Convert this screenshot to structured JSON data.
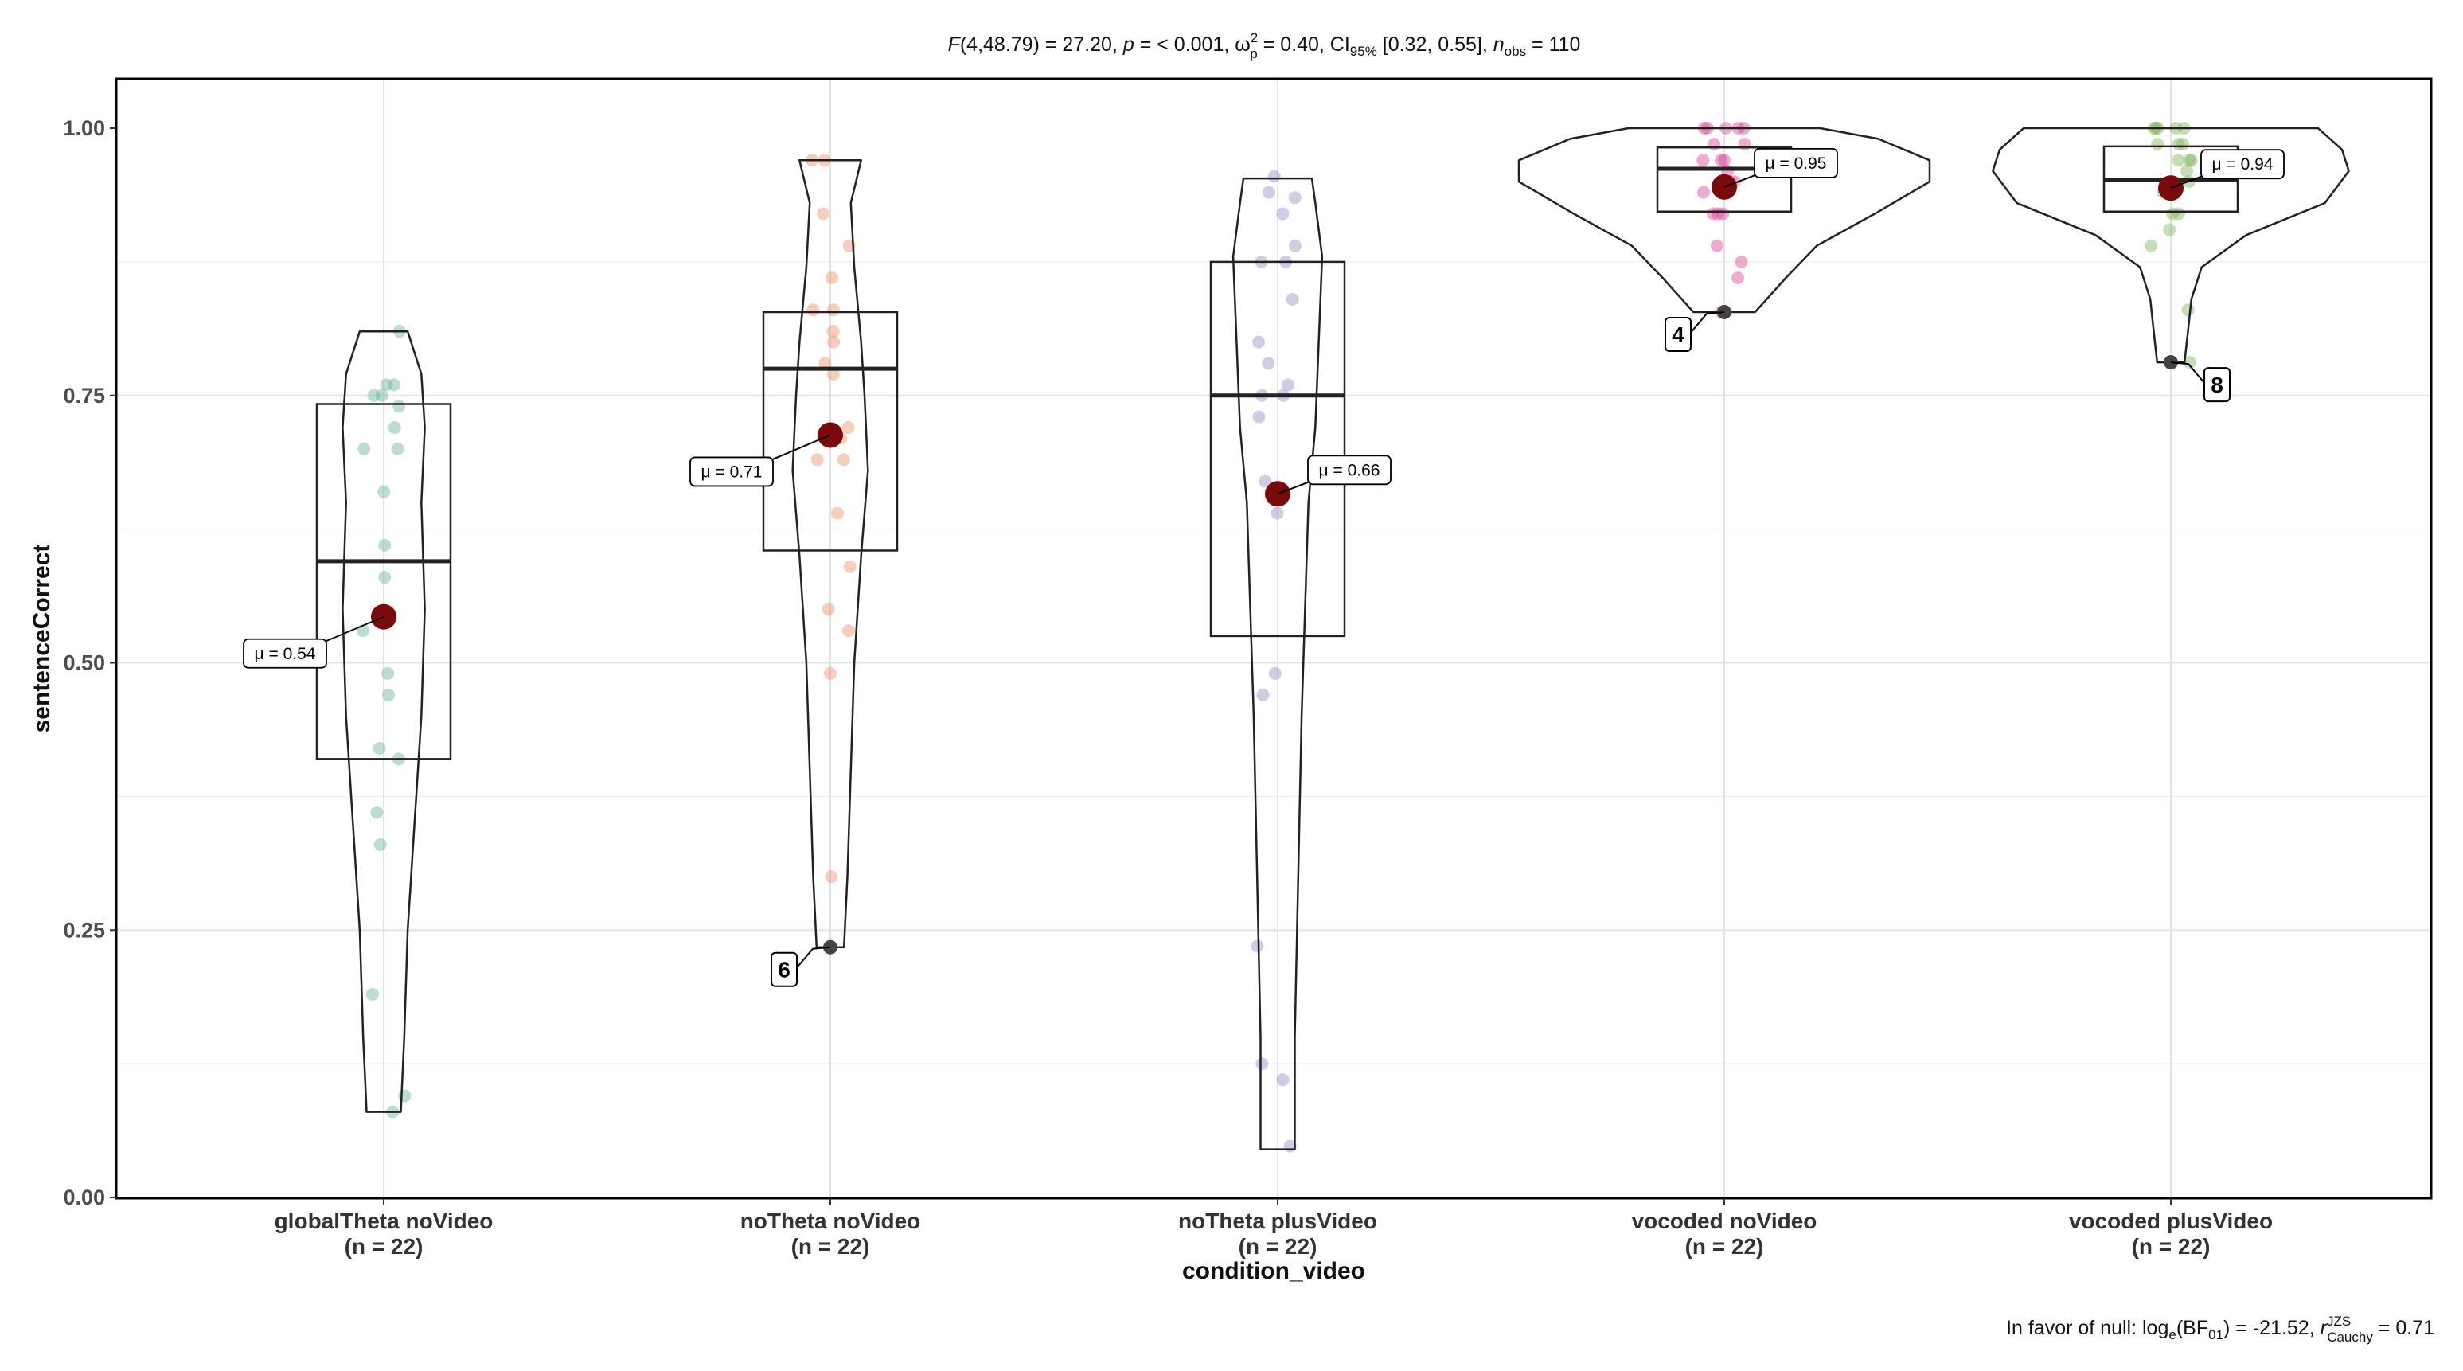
{
  "subtitle": {
    "F_label": "F",
    "F_args": "(4,48.79) = 27.20, ",
    "p_label": "p",
    "p_value": " = < 0.001, ",
    "omega": "ω",
    "omega_sup": "2",
    "omega_sub": "p",
    "omega_value": " = 0.40, CI",
    "ci_sub": "95%",
    "ci_value": " [0.32, 0.55], ",
    "n_label": "n",
    "n_sub": "obs",
    "n_value": " = 110"
  },
  "caption": {
    "prefix": "In favor of null: log",
    "log_sub": "e",
    "bf": "(BF",
    "bf_sub": "01",
    "bf_value": ") = -21.52, ",
    "r_label": "r",
    "r_sup": "JZS",
    "r_sub": "Cauchy",
    "r_value": " = 0.71"
  },
  "chart_data": {
    "type": "violin-box",
    "xlabel": "condition_video",
    "ylabel": "sentenceCorrect",
    "ylim": [
      0,
      1.05
    ],
    "yticks": [
      "0.00",
      "0.25",
      "0.50",
      "0.75",
      "1.00"
    ],
    "grid": true,
    "categories": [
      {
        "name": "globalTheta noVideo",
        "n_label": "(n = 22)",
        "color": "#6bb69a",
        "box": {
          "q1": 0.41,
          "median": 0.595,
          "q3": 0.742
        },
        "mean": 0.543,
        "mean_label": "μ = 0.54",
        "mean_label_side": "left",
        "outlier": null,
        "violin": [
          [
            0.08,
            0.005
          ],
          [
            0.15,
            0.006
          ],
          [
            0.25,
            0.007
          ],
          [
            0.35,
            0.009
          ],
          [
            0.45,
            0.011
          ],
          [
            0.55,
            0.012
          ],
          [
            0.65,
            0.011
          ],
          [
            0.72,
            0.012
          ],
          [
            0.77,
            0.011
          ],
          [
            0.81,
            0.007
          ]
        ],
        "points": [
          0.76,
          0.76,
          0.75,
          0.75,
          0.7,
          0.72,
          0.66,
          0.61,
          0.58,
          0.53,
          0.49,
          0.47,
          0.42,
          0.41,
          0.36,
          0.33,
          0.19,
          0.095,
          0.08,
          0.81,
          0.74,
          0.7
        ]
      },
      {
        "name": "noTheta noVideo",
        "n_label": "(n = 22)",
        "color": "#e8926a",
        "box": {
          "q1": 0.605,
          "median": 0.775,
          "q3": 0.828
        },
        "mean": 0.713,
        "mean_label": "μ = 0.71",
        "mean_label_side": "left",
        "outlier": {
          "y": 0.234,
          "label": "6"
        },
        "violin": [
          [
            0.234,
            0.004
          ],
          [
            0.3,
            0.005
          ],
          [
            0.4,
            0.006
          ],
          [
            0.5,
            0.007
          ],
          [
            0.6,
            0.009
          ],
          [
            0.68,
            0.011
          ],
          [
            0.75,
            0.01
          ],
          [
            0.8,
            0.009
          ],
          [
            0.87,
            0.007
          ],
          [
            0.93,
            0.006
          ],
          [
            0.97,
            0.009
          ]
        ],
        "points": [
          0.97,
          0.97,
          0.92,
          0.89,
          0.86,
          0.83,
          0.81,
          0.8,
          0.77,
          0.78,
          0.72,
          0.69,
          0.69,
          0.71,
          0.64,
          0.59,
          0.55,
          0.53,
          0.49,
          0.3,
          0.234,
          0.83
        ]
      },
      {
        "name": "noTheta plusVideo",
        "n_label": "(n = 22)",
        "color": "#9a8dc4",
        "box": {
          "q1": 0.525,
          "median": 0.75,
          "q3": 0.875
        },
        "mean": 0.658,
        "mean_label": "μ = 0.66",
        "mean_label_side": "right",
        "outlier": null,
        "violin": [
          [
            0.045,
            0.005
          ],
          [
            0.15,
            0.005
          ],
          [
            0.3,
            0.006
          ],
          [
            0.45,
            0.007
          ],
          [
            0.55,
            0.008
          ],
          [
            0.65,
            0.009
          ],
          [
            0.72,
            0.011
          ],
          [
            0.8,
            0.012
          ],
          [
            0.88,
            0.013
          ],
          [
            0.93,
            0.011
          ],
          [
            0.953,
            0.01
          ]
        ],
        "points": [
          0.955,
          0.94,
          0.935,
          0.92,
          0.89,
          0.875,
          0.875,
          0.84,
          0.8,
          0.78,
          0.76,
          0.75,
          0.75,
          0.73,
          0.67,
          0.64,
          0.49,
          0.47,
          0.235,
          0.125,
          0.11,
          0.048
        ]
      },
      {
        "name": "vocoded noVideo",
        "n_label": "(n = 22)",
        "color": "#d9479a",
        "box": {
          "q1": 0.922,
          "median": 0.962,
          "q3": 0.982
        },
        "mean": 0.945,
        "mean_label": "μ = 0.95",
        "mean_label_side": "right",
        "outlier": {
          "y": 0.828,
          "label": "4"
        },
        "violin": [
          [
            0.828,
            0.009
          ],
          [
            0.86,
            0.018
          ],
          [
            0.89,
            0.027
          ],
          [
            0.92,
            0.044
          ],
          [
            0.95,
            0.06
          ],
          [
            0.97,
            0.06
          ],
          [
            0.99,
            0.045
          ],
          [
            1.0,
            0.028
          ]
        ],
        "points": [
          1.0,
          1.0,
          1.0,
          1.0,
          0.985,
          0.985,
          0.97,
          0.97,
          0.97,
          0.96,
          0.95,
          0.95,
          0.94,
          0.94,
          0.92,
          0.92,
          0.92,
          0.89,
          0.875,
          0.86,
          0.828,
          1.0
        ]
      },
      {
        "name": "vocoded plusVideo",
        "n_label": "(n = 22)",
        "color": "#7fb55a",
        "box": {
          "q1": 0.922,
          "median": 0.952,
          "q3": 0.983
        },
        "mean": 0.944,
        "mean_label": "μ = 0.94",
        "mean_label_side": "right",
        "outlier": {
          "y": 0.781,
          "label": "8"
        },
        "violin": [
          [
            0.781,
            0.004
          ],
          [
            0.81,
            0.005
          ],
          [
            0.84,
            0.006
          ],
          [
            0.87,
            0.009
          ],
          [
            0.9,
            0.022
          ],
          [
            0.93,
            0.045
          ],
          [
            0.96,
            0.052
          ],
          [
            0.98,
            0.05
          ],
          [
            1.0,
            0.043
          ]
        ],
        "points": [
          1.0,
          1.0,
          1.0,
          1.0,
          0.985,
          0.985,
          0.97,
          0.97,
          0.97,
          0.96,
          0.95,
          0.95,
          0.94,
          0.94,
          0.92,
          0.92,
          0.905,
          0.89,
          0.83,
          0.781,
          1.0,
          0.985
        ]
      }
    ]
  }
}
